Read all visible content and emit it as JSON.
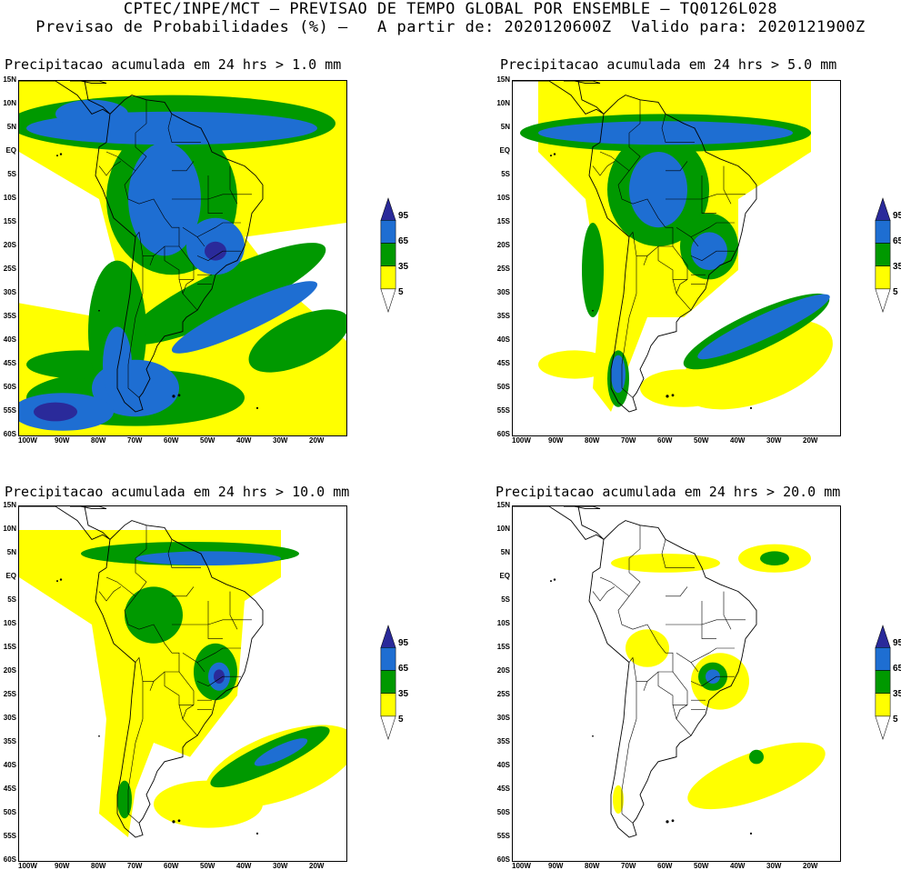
{
  "header": {
    "line1": "CPTEC/INPE/MCT – PREVISAO DE TEMPO GLOBAL POR ENSEMBLE – TQ0126L028",
    "line2": "Previsao de Probabilidades (%) –   A partir de: 2020120600Z  Valido para: 2020121900Z"
  },
  "panels": [
    {
      "title": "Precipitacao acumulada em 24 hrs > 1.0 mm"
    },
    {
      "title": "Precipitacao acumulada em 24 hrs > 5.0 mm"
    },
    {
      "title": "Precipitacao acumulada em 24 hrs > 10.0 mm"
    },
    {
      "title": "Precipitacao acumulada em 24 hrs > 20.0 mm"
    }
  ],
  "axes": {
    "lat_labels": [
      "15N",
      "10N",
      "5N",
      "EQ",
      "5S",
      "10S",
      "15S",
      "20S",
      "25S",
      "30S",
      "35S",
      "40S",
      "45S",
      "50S",
      "55S",
      "60S"
    ],
    "lon_labels": [
      "100W",
      "90W",
      "80W",
      "70W",
      "60W",
      "50W",
      "40W",
      "30W",
      "20W"
    ]
  },
  "colorbar": {
    "labels": [
      "95",
      "65",
      "35",
      "5"
    ],
    "colors": {
      "yellow": "#ffff00",
      "green": "#009900",
      "blue": "#1e6ed2",
      "navy": "#2a2a9a"
    }
  }
}
